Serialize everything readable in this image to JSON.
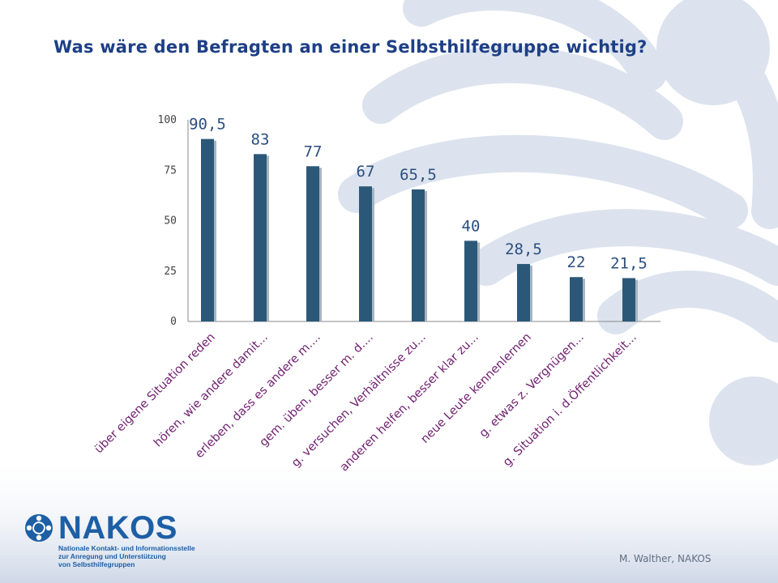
{
  "title": "Was wäre den Befragten an einer Selbsthilfegruppe wichtig?",
  "colors": {
    "title": "#1e3f86",
    "bar": "#2b5878",
    "bar_shadow": "#a9b4c0",
    "value_label": "#2b4f7f",
    "category_label": "#6f1f6f",
    "axis": "#8a8a8a"
  },
  "chart_data": {
    "type": "bar",
    "categories": [
      "über eigene Situation reden",
      "hören, wie andere damit...",
      "erleben, dass es andere m....",
      "gem. üben, besser m. d....",
      "g. versuchen, Verhältnisse zu...",
      "anderen helfen, besser klar zu...",
      "neue Leute kennenlernen",
      "g. etwas z. Vergnügen...",
      "g. Situation i. d.Öffentlichkeit..."
    ],
    "values": [
      90.5,
      83,
      77,
      67,
      65.5,
      40,
      28.5,
      22,
      21.5
    ],
    "value_labels": [
      "90,5",
      "83",
      "77",
      "67",
      "65,5",
      "40",
      "28,5",
      "22",
      "21,5"
    ],
    "yticks": [
      "0",
      "25",
      "50",
      "75",
      "100"
    ],
    "ylim": [
      0,
      100
    ],
    "grid": false,
    "legend": "none"
  },
  "footer": {
    "credit": "M. Walther, NAKOS"
  },
  "logo": {
    "name": "NAKOS",
    "lines": [
      "Nationale Kontakt- und Informationsstelle",
      "zur Anregung und Unterstützung",
      "von Selbsthilfegruppen"
    ]
  }
}
